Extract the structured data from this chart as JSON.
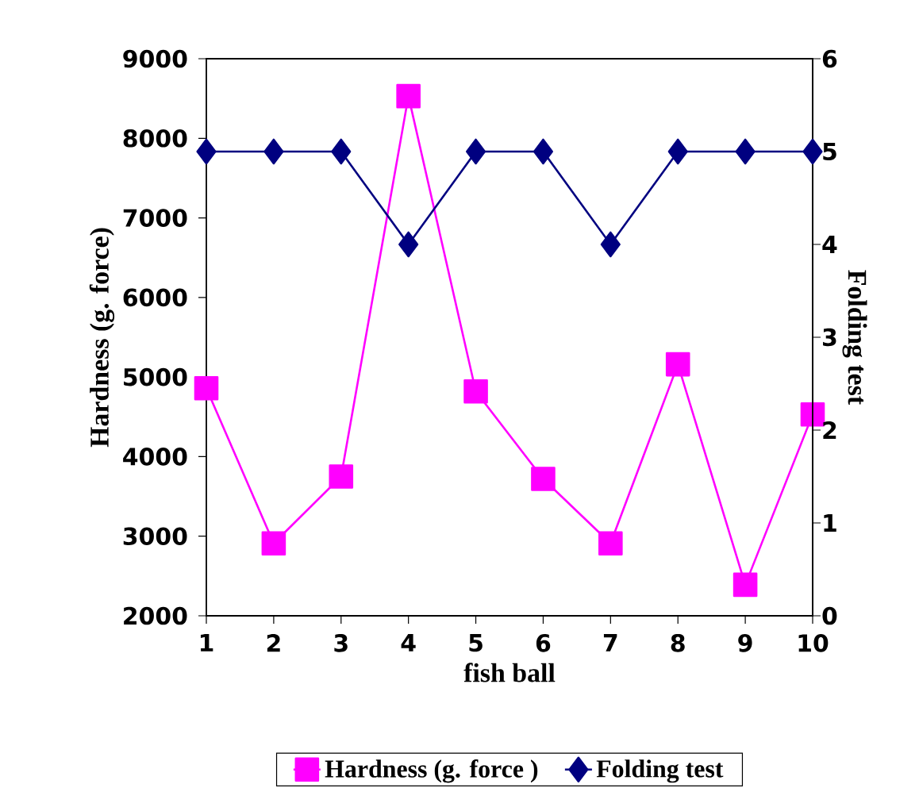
{
  "chart_data": {
    "type": "line",
    "xlabel": "fish ball",
    "ylabel": "Hardness (g. force)",
    "y2label": "Folding test",
    "categories": [
      "1",
      "2",
      "3",
      "4",
      "5",
      "6",
      "7",
      "8",
      "9",
      "10"
    ],
    "series": [
      {
        "name": "Hardness    (g. force )",
        "color": "#ff00ff",
        "marker": "square",
        "values": [
          4860,
          2910,
          3750,
          8530,
          4820,
          3720,
          2910,
          5160,
          2390,
          4530
        ]
      },
      {
        "name": "Folding test",
        "color": "#000080",
        "marker": "diamond",
        "axis": "y2",
        "values": [
          5,
          5,
          5,
          4,
          5,
          5,
          4,
          5,
          5,
          5
        ]
      }
    ],
    "ylim": [
      2000,
      9000
    ],
    "yticks": [
      2000,
      3000,
      4000,
      5000,
      6000,
      7000,
      8000,
      9000
    ],
    "y2lim": [
      0,
      6
    ],
    "y2ticks": [
      0,
      1,
      2,
      3,
      4,
      5,
      6
    ],
    "legend": "bottom"
  }
}
